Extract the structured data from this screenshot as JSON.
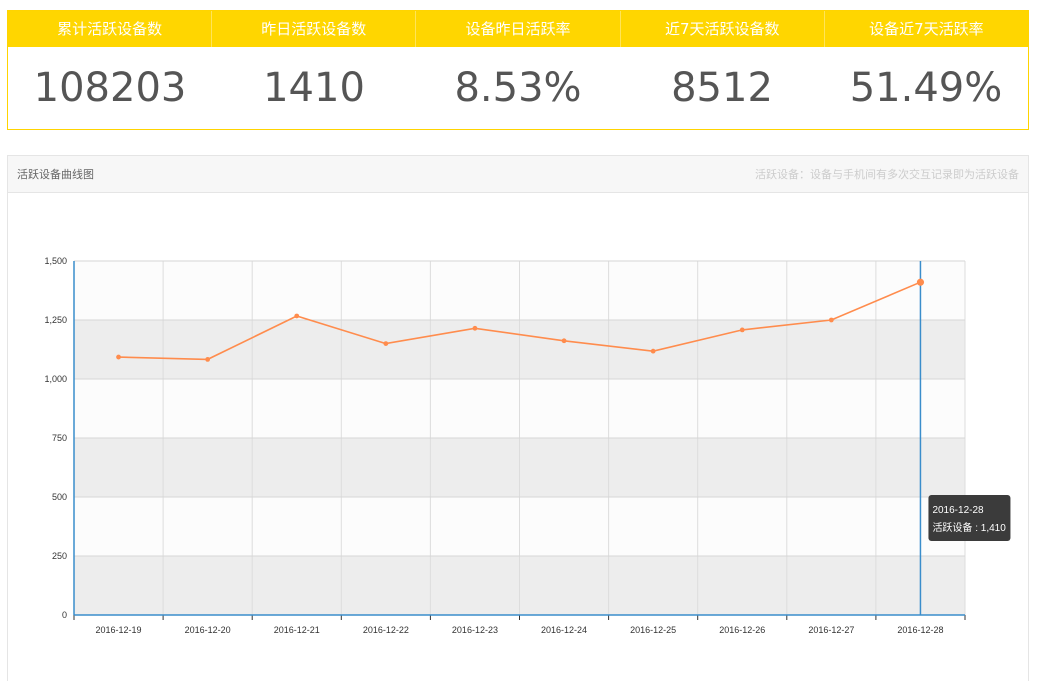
{
  "kpis": [
    {
      "label": "累计活跃设备数",
      "value": "108203"
    },
    {
      "label": "昨日活跃设备数",
      "value": "1410"
    },
    {
      "label": "设备昨日活跃率",
      "value": "8.53%"
    },
    {
      "label": "近7天活跃设备数",
      "value": "8512"
    },
    {
      "label": "设备近7天活跃率",
      "value": "51.49%"
    }
  ],
  "panel": {
    "title": "活跃设备曲线图",
    "note": "活跃设备：设备与手机间有多次交互记录即为活跃设备"
  },
  "colors": {
    "accent": "#ffd600",
    "line": "#ff8c4d",
    "crosshair": "#3a8dcb"
  },
  "tooltip": {
    "date": "2016-12-28",
    "text": "活跃设备 : 1,410"
  },
  "chart_data": {
    "type": "line",
    "title": "",
    "xlabel": "",
    "ylabel": "",
    "categories": [
      "2016-12-19",
      "2016-12-20",
      "2016-12-21",
      "2016-12-22",
      "2016-12-23",
      "2016-12-24",
      "2016-12-25",
      "2016-12-26",
      "2016-12-27",
      "2016-12-28"
    ],
    "series": [
      {
        "name": "活跃设备",
        "values": [
          1093,
          1083,
          1267,
          1150,
          1215,
          1162,
          1118,
          1208,
          1250,
          1410
        ]
      }
    ],
    "ylim": [
      0,
      1500
    ],
    "yticks": [
      "0",
      "250",
      "500",
      "750",
      "1,000",
      "1,250",
      "1,500"
    ],
    "yticks_values": [
      0,
      250,
      500,
      750,
      1000,
      1250,
      1500
    ],
    "grid": true,
    "alternating_bands": true,
    "highlighted_index": 9
  }
}
